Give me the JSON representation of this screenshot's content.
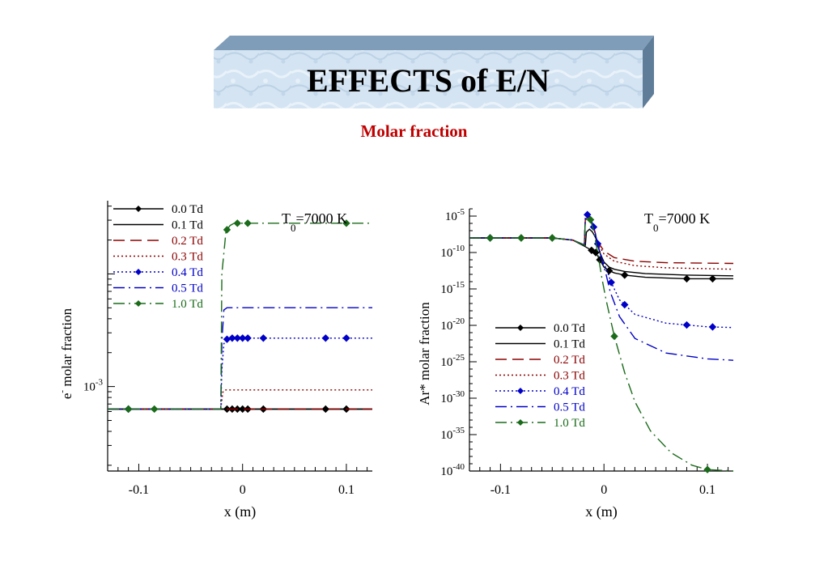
{
  "title": "EFFECTS of E/N",
  "subtitle": "Molar fraction",
  "colors": {
    "title_box_face": "#cfe0f0",
    "title_box_side": "#5f7d99",
    "subtitle": "#c00000"
  },
  "chart_data": [
    {
      "type": "line",
      "ylabel": "e- molar fraction",
      "ylabel_main": "e",
      "ylabel_sup": "-",
      "ylabel_rest": "molar fraction",
      "xlabel": "x (m)",
      "annotation_main": "T",
      "annotation_sub": "0",
      "annotation_rest": "=7000 K",
      "xlim": [
        -0.13,
        0.125
      ],
      "yscale": "log",
      "ylim_log10": [
        -3.75,
        -1.35
      ],
      "x_ticks": [
        {
          "v": -0.1,
          "label": "-0.1"
        },
        {
          "v": 0,
          "label": "0"
        },
        {
          "v": 0.1,
          "label": "0.1"
        }
      ],
      "y_ticks": [
        {
          "exp": -3,
          "label": "10",
          "sup": "-3"
        }
      ],
      "legend_position": "top-left",
      "series": [
        {
          "name": "0.0 Td",
          "color": "#000000",
          "dash": "",
          "marker": true,
          "x": [
            -0.13,
            -0.11,
            -0.08,
            -0.05,
            -0.02,
            -0.018,
            -0.015,
            -0.01,
            -0.005,
            0,
            0.005,
            0.02,
            0.08,
            0.1,
            0.125
          ],
          "log_y": [
            -3.2,
            -3.2,
            -3.2,
            -3.2,
            -3.2,
            -3.2,
            -3.2,
            -3.2,
            -3.2,
            -3.2,
            -3.2,
            -3.2,
            -3.2,
            -3.2,
            -3.2
          ],
          "marker_x": [
            -0.11,
            -0.015,
            -0.01,
            -0.005,
            0,
            0.005,
            0.02,
            0.08,
            0.1
          ]
        },
        {
          "name": "0.1 Td",
          "color": "#000000",
          "dash": "",
          "marker": false,
          "x": [
            -0.13,
            -0.02,
            0.125
          ],
          "log_y": [
            -3.2,
            -3.2,
            -3.2
          ]
        },
        {
          "name": "0.2 Td",
          "color": "#8b0000",
          "dash": "14,7",
          "marker": false,
          "x": [
            -0.13,
            -0.02,
            0.125
          ],
          "log_y": [
            -3.2,
            -3.2,
            -3.2
          ]
        },
        {
          "name": "0.3 Td",
          "color": "#8b0000",
          "dash": "2,3",
          "marker": false,
          "x": [
            -0.13,
            -0.022,
            -0.021,
            -0.019,
            -0.017,
            -0.015,
            0.125
          ],
          "log_y": [
            -3.2,
            -3.2,
            -3.2,
            -3.05,
            -3.03,
            -3.03,
            -3.03
          ]
        },
        {
          "name": "0.4 Td",
          "color": "#0000c8",
          "dash": "2,3",
          "marker": true,
          "x": [
            -0.13,
            -0.022,
            -0.021,
            -0.02,
            -0.018,
            -0.015,
            -0.01,
            -0.005,
            0,
            0.005,
            0.02,
            0.08,
            0.1,
            0.125
          ],
          "log_y": [
            -3.2,
            -3.2,
            -3.2,
            -2.85,
            -2.62,
            -2.58,
            -2.57,
            -2.57,
            -2.57,
            -2.57,
            -2.57,
            -2.57,
            -2.57,
            -2.57
          ],
          "marker_x": [
            -0.11,
            -0.015,
            -0.01,
            -0.005,
            0,
            0.005,
            0.02,
            0.08,
            0.1
          ]
        },
        {
          "name": "0.5 Td",
          "color": "#0000c8",
          "dash": "14,5,2,5",
          "marker": false,
          "x": [
            -0.13,
            -0.022,
            -0.021,
            -0.02,
            -0.018,
            -0.015,
            0.125
          ],
          "log_y": [
            -3.2,
            -3.2,
            -3.2,
            -2.6,
            -2.32,
            -2.3,
            -2.3
          ]
        },
        {
          "name": "1.0 Td",
          "color": "#1a6b1a",
          "dash": "14,5,2,5",
          "marker": true,
          "x": [
            -0.13,
            -0.022,
            -0.021,
            -0.02,
            -0.016,
            -0.012,
            -0.008,
            0,
            0.005,
            0.02,
            0.08,
            0.1,
            0.125
          ],
          "log_y": [
            -3.2,
            -3.2,
            -3.2,
            -2.0,
            -1.62,
            -1.57,
            -1.55,
            -1.55,
            -1.55,
            -1.55,
            -1.55,
            -1.55,
            -1.55
          ],
          "marker_x": [
            -0.11,
            -0.085,
            -0.015,
            -0.005,
            0.005,
            0.1
          ]
        }
      ]
    },
    {
      "type": "line",
      "ylabel": "Ar* molar fraction",
      "ylabel_main": "Ar*",
      "ylabel_rest": "molar fraction",
      "xlabel": "x (m)",
      "annotation_main": "T",
      "annotation_sub": "0",
      "annotation_rest": "=7000 K",
      "xlim": [
        -0.13,
        0.125
      ],
      "yscale": "log",
      "ylim_log10": [
        -40,
        -4
      ],
      "x_ticks": [
        {
          "v": -0.1,
          "label": "-0.1"
        },
        {
          "v": 0,
          "label": "0"
        },
        {
          "v": 0.1,
          "label": "0.1"
        }
      ],
      "y_ticks": [
        {
          "exp": -5,
          "label": "10",
          "sup": "-5"
        },
        {
          "exp": -10,
          "label": "10",
          "sup": "-10"
        },
        {
          "exp": -15,
          "label": "10",
          "sup": "-15"
        },
        {
          "exp": -20,
          "label": "10",
          "sup": "-20"
        },
        {
          "exp": -25,
          "label": "10",
          "sup": "-25"
        },
        {
          "exp": -30,
          "label": "10",
          "sup": "-30"
        },
        {
          "exp": -35,
          "label": "10",
          "sup": "-35"
        },
        {
          "exp": -40,
          "label": "10",
          "sup": "-40"
        }
      ],
      "legend_position": "middle-left",
      "series": [
        {
          "name": "0.0 Td",
          "color": "#000000",
          "dash": "",
          "marker": true,
          "x": [
            -0.13,
            -0.05,
            -0.03,
            -0.018,
            -0.012,
            -0.008,
            -0.004,
            0,
            0.005,
            0.01,
            0.02,
            0.04,
            0.08,
            0.1,
            0.125
          ],
          "log_y": [
            -8,
            -8,
            -8.3,
            -9.2,
            -9.7,
            -10,
            -11,
            -12,
            -12.5,
            -12.8,
            -13.1,
            -13.4,
            -13.6,
            -13.6,
            -13.6
          ],
          "marker_x": [
            -0.11,
            -0.08,
            -0.05,
            -0.012,
            -0.008,
            -0.004,
            0.005,
            0.02,
            0.08,
            0.105
          ]
        },
        {
          "name": "0.1 Td",
          "color": "#000000",
          "dash": "",
          "marker": false,
          "x": [
            -0.13,
            -0.05,
            -0.03,
            -0.018,
            -0.017,
            -0.014,
            -0.011,
            -0.008,
            -0.004,
            0,
            0.005,
            0.01,
            0.02,
            0.04,
            0.08,
            0.125
          ],
          "log_y": [
            -8,
            -8,
            -8.3,
            -9,
            -7.2,
            -6.8,
            -7.2,
            -8,
            -10,
            -11.3,
            -12,
            -12.3,
            -12.6,
            -12.9,
            -13.1,
            -13.2
          ]
        },
        {
          "name": "0.2 Td",
          "color": "#8b0000",
          "dash": "14,7",
          "marker": false,
          "x": [
            -0.13,
            -0.05,
            -0.03,
            -0.019,
            -0.018,
            -0.016,
            -0.013,
            -0.01,
            -0.006,
            0,
            0.01,
            0.03,
            0.06,
            0.125
          ],
          "log_y": [
            -8,
            -8,
            -8.3,
            -9,
            -5.5,
            -5.2,
            -5.4,
            -6.5,
            -8.5,
            -9.8,
            -10.7,
            -11.2,
            -11.4,
            -11.5
          ]
        },
        {
          "name": "0.3 Td",
          "color": "#8b0000",
          "dash": "2,3",
          "marker": false,
          "x": [
            -0.13,
            -0.05,
            -0.03,
            -0.019,
            -0.018,
            -0.016,
            -0.013,
            -0.01,
            -0.006,
            0,
            0.01,
            0.03,
            0.06,
            0.125
          ],
          "log_y": [
            -8,
            -8,
            -8.3,
            -9,
            -5.3,
            -5.1,
            -5.3,
            -6.5,
            -8.8,
            -10.2,
            -11.2,
            -11.8,
            -12.1,
            -12.3
          ]
        },
        {
          "name": "0.4 Td",
          "color": "#0000c8",
          "dash": "2,3",
          "marker": true,
          "x": [
            -0.13,
            -0.05,
            -0.03,
            -0.019,
            -0.018,
            -0.016,
            -0.013,
            -0.01,
            -0.006,
            -0.002,
            0.003,
            0.007,
            0.015,
            0.03,
            0.06,
            0.1,
            0.125
          ],
          "log_y": [
            -8,
            -8,
            -8.3,
            -9,
            -5.2,
            -4.8,
            -5.2,
            -6.5,
            -8.8,
            -10.8,
            -12.5,
            -14.1,
            -16.5,
            -18.5,
            -19.7,
            -20.2,
            -20.3
          ],
          "marker_x": [
            -0.11,
            -0.016,
            -0.01,
            -0.006,
            0.007,
            0.02,
            0.08,
            0.105
          ]
        },
        {
          "name": "0.5 Td",
          "color": "#0000c8",
          "dash": "14,5,2,5",
          "marker": false,
          "x": [
            -0.13,
            -0.05,
            -0.03,
            -0.019,
            -0.018,
            -0.016,
            -0.013,
            -0.01,
            -0.006,
            -0.002,
            0.002,
            0.006,
            0.015,
            0.03,
            0.06,
            0.1,
            0.125
          ],
          "log_y": [
            -8,
            -8,
            -8.3,
            -9,
            -5.2,
            -4.8,
            -5.2,
            -6.5,
            -8.8,
            -11,
            -13,
            -15.4,
            -18.8,
            -21.8,
            -23.8,
            -24.6,
            -24.8
          ]
        },
        {
          "name": "1.0 Td",
          "color": "#1a6b1a",
          "dash": "14,5,2,5",
          "marker": true,
          "x": [
            -0.13,
            -0.05,
            -0.03,
            -0.019,
            -0.018,
            -0.016,
            -0.013,
            -0.01,
            -0.006,
            -0.002,
            0.002,
            0.006,
            0.01,
            0.02,
            0.03,
            0.045,
            0.065,
            0.085,
            0.1,
            0.125
          ],
          "log_y": [
            -8,
            -8,
            -8.3,
            -9,
            -5.6,
            -5.3,
            -5.5,
            -7,
            -10,
            -13.5,
            -16.5,
            -19,
            -21.5,
            -26.5,
            -30.5,
            -34.5,
            -37.5,
            -39.2,
            -39.8,
            -40
          ],
          "marker_x": [
            -0.11,
            -0.08,
            -0.05,
            -0.013,
            0.01,
            0.1
          ]
        }
      ]
    }
  ]
}
